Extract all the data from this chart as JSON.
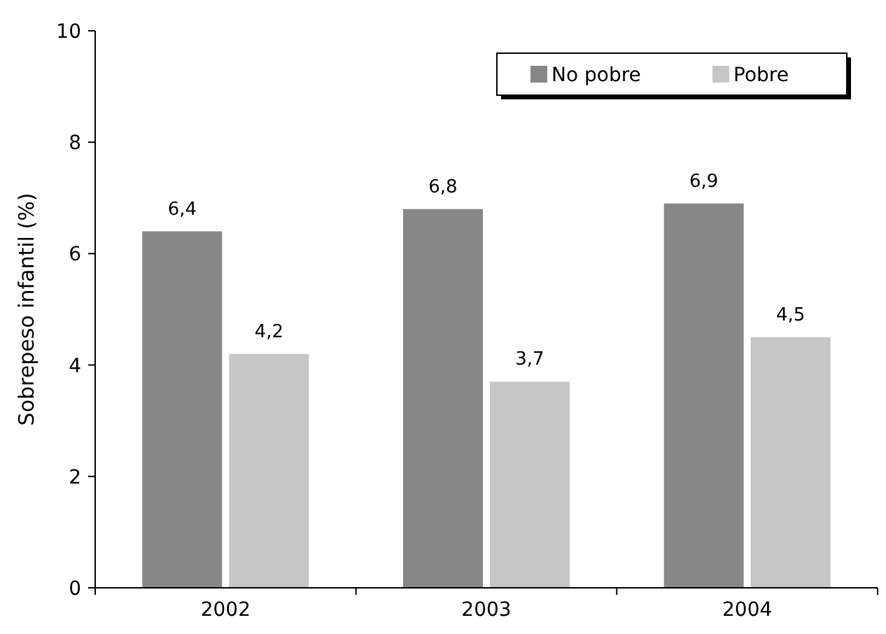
{
  "chart_data": {
    "type": "bar",
    "ylabel": "Sobrepeso infantil (%)",
    "categories": [
      "2002",
      "2003",
      "2004"
    ],
    "series": [
      {
        "name": "No pobre",
        "color": "#878787",
        "values": [
          6.4,
          6.8,
          6.9
        ],
        "value_labels": [
          "6,4",
          "6,8",
          "6,9"
        ]
      },
      {
        "name": "Pobre",
        "color": "#c6c6c6",
        "values": [
          4.2,
          3.7,
          4.5
        ],
        "value_labels": [
          "4,2",
          "3,7",
          "4,5"
        ]
      }
    ],
    "ylim": [
      0,
      10
    ],
    "yticks": [
      0,
      2,
      4,
      6,
      8,
      10
    ],
    "grid": false,
    "legend": "top right"
  }
}
